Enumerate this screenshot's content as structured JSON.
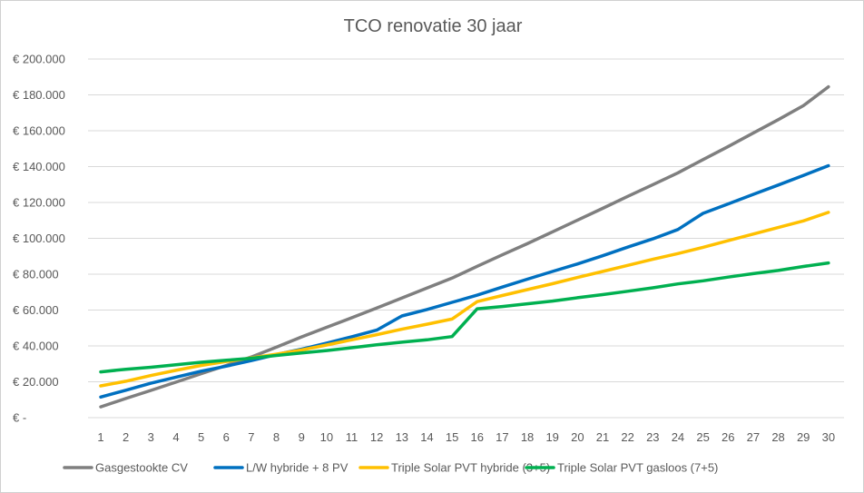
{
  "chart_data": {
    "type": "line",
    "title": "TCO renovatie 30 jaar",
    "xlabel": "",
    "ylabel": "",
    "ylim": [
      0,
      200000
    ],
    "grid": true,
    "legend_position": "bottom",
    "x": [
      1,
      2,
      3,
      4,
      5,
      6,
      7,
      8,
      9,
      10,
      11,
      12,
      13,
      14,
      15,
      16,
      17,
      18,
      19,
      20,
      21,
      22,
      23,
      24,
      25,
      26,
      27,
      28,
      29,
      30
    ],
    "x_tick_labels": [
      "1",
      "2",
      "3",
      "4",
      "5",
      "6",
      "7",
      "8",
      "9",
      "10",
      "11",
      "12",
      "13",
      "14",
      "15",
      "16",
      "17",
      "18",
      "19",
      "20",
      "21",
      "22",
      "23",
      "24",
      "25",
      "26",
      "27",
      "28",
      "29",
      "30"
    ],
    "y_ticks": [
      0,
      20000,
      40000,
      60000,
      80000,
      100000,
      120000,
      140000,
      160000,
      180000,
      200000
    ],
    "y_tick_labels": [
      "€ -",
      "€ 20.000",
      "€ 40.000",
      "€ 60.000",
      "€ 80.000",
      "€ 100.000",
      "€ 120.000",
      "€ 140.000",
      "€ 160.000",
      "€ 180.000",
      "€ 200.000"
    ],
    "series": [
      {
        "name": "Gasgestookte CV",
        "color": "#7f7f7f",
        "values": [
          6000,
          10700,
          15200,
          19800,
          24500,
          29100,
          33800,
          39300,
          45000,
          50400,
          55700,
          61100,
          66700,
          72300,
          77800,
          84400,
          90800,
          97000,
          103600,
          110200,
          116700,
          123400,
          129900,
          136500,
          143900,
          151200,
          158700,
          166200,
          174000,
          184500
        ]
      },
      {
        "name": "L/W hybride + 8 PV",
        "color": "#0070c0",
        "values": [
          11500,
          15300,
          19200,
          22600,
          25900,
          28700,
          31800,
          35200,
          38200,
          41500,
          45100,
          48800,
          56700,
          60300,
          64300,
          68300,
          72800,
          77200,
          81500,
          85700,
          90300,
          95100,
          99700,
          104900,
          113900,
          119200,
          124500,
          129700,
          135100,
          140500
        ]
      },
      {
        "name": "Triple Solar PVT hybride (3+5)",
        "color": "#ffc000",
        "values": [
          17700,
          20300,
          23500,
          26400,
          29100,
          31300,
          33300,
          35400,
          37700,
          40500,
          43400,
          46300,
          49300,
          52100,
          55000,
          64700,
          68100,
          71400,
          74700,
          78200,
          81500,
          84900,
          88300,
          91500,
          95000,
          98700,
          102400,
          106000,
          109700,
          114500
        ]
      },
      {
        "name": "Triple Solar PVT gasloos (7+5)",
        "color": "#00b050",
        "values": [
          25500,
          27000,
          28100,
          29500,
          30900,
          32000,
          33100,
          34700,
          36100,
          37400,
          39000,
          40600,
          42100,
          43400,
          45200,
          60700,
          62000,
          63500,
          65000,
          66900,
          68600,
          70500,
          72400,
          74600,
          76300,
          78400,
          80300,
          82100,
          84300,
          86300
        ]
      }
    ]
  }
}
